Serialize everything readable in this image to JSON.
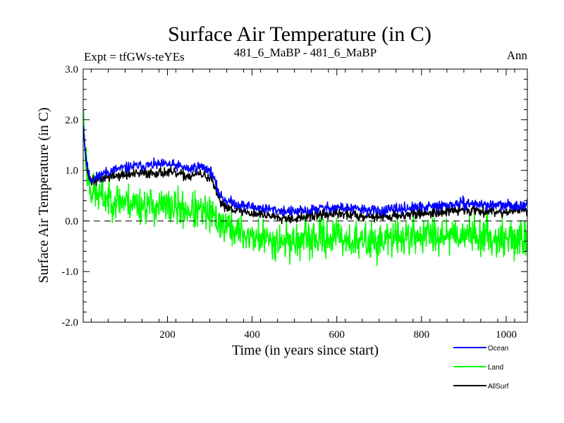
{
  "chart_data": {
    "type": "line",
    "title": "Surface Air Temperature (in C)",
    "subtitle_left": "Expt = tfGWs-teYEs",
    "subtitle_center": "481_6_MaBP - 481_6_MaBP",
    "subtitle_right": "Ann",
    "xlabel": "Time (in years since start)",
    "ylabel": "Surface Air Temperature (in C)",
    "xlim": [
      1,
      1050
    ],
    "ylim": [
      -2.0,
      3.0
    ],
    "x_ticks": [
      200,
      400,
      600,
      800,
      1000
    ],
    "x_tick_labels": [
      "200",
      "400",
      "600",
      "800",
      "1000"
    ],
    "y_ticks": [
      -2.0,
      -1.0,
      0.0,
      1.0,
      2.0,
      3.0
    ],
    "y_tick_labels": [
      "-2.0",
      "-1.0",
      "0.0",
      "1.0",
      "2.0",
      "3.0"
    ],
    "reference_line": 0.0,
    "legend_position": "bottom-right, below plot",
    "series": [
      {
        "name": "Ocean",
        "color": "#0000ff",
        "noise": 0.05,
        "seed": 11,
        "points": [
          [
            1,
            1.95
          ],
          [
            5,
            1.5
          ],
          [
            10,
            1.1
          ],
          [
            15,
            0.9
          ],
          [
            20,
            0.82
          ],
          [
            30,
            0.85
          ],
          [
            50,
            0.95
          ],
          [
            80,
            1.02
          ],
          [
            120,
            1.08
          ],
          [
            160,
            1.1
          ],
          [
            200,
            1.12
          ],
          [
            230,
            1.08
          ],
          [
            250,
            1.02
          ],
          [
            270,
            1.08
          ],
          [
            290,
            1.05
          ],
          [
            305,
            0.95
          ],
          [
            315,
            0.7
          ],
          [
            325,
            0.5
          ],
          [
            340,
            0.4
          ],
          [
            370,
            0.32
          ],
          [
            400,
            0.28
          ],
          [
            450,
            0.22
          ],
          [
            500,
            0.18
          ],
          [
            530,
            0.2
          ],
          [
            560,
            0.25
          ],
          [
            600,
            0.27
          ],
          [
            640,
            0.24
          ],
          [
            700,
            0.2
          ],
          [
            760,
            0.25
          ],
          [
            800,
            0.27
          ],
          [
            850,
            0.3
          ],
          [
            900,
            0.35
          ],
          [
            950,
            0.32
          ],
          [
            1000,
            0.3
          ],
          [
            1050,
            0.33
          ]
        ]
      },
      {
        "name": "Land",
        "color": "#00ff00",
        "noise": 0.18,
        "seed": 23,
        "points": [
          [
            1,
            2.15
          ],
          [
            5,
            1.5
          ],
          [
            10,
            1.0
          ],
          [
            20,
            0.6
          ],
          [
            40,
            0.48
          ],
          [
            80,
            0.42
          ],
          [
            120,
            0.35
          ],
          [
            160,
            0.3
          ],
          [
            200,
            0.27
          ],
          [
            250,
            0.22
          ],
          [
            300,
            0.12
          ],
          [
            330,
            -0.05
          ],
          [
            360,
            -0.2
          ],
          [
            400,
            -0.32
          ],
          [
            450,
            -0.38
          ],
          [
            500,
            -0.4
          ],
          [
            550,
            -0.35
          ],
          [
            600,
            -0.3
          ],
          [
            650,
            -0.42
          ],
          [
            700,
            -0.4
          ],
          [
            750,
            -0.32
          ],
          [
            800,
            -0.28
          ],
          [
            850,
            -0.25
          ],
          [
            900,
            -0.25
          ],
          [
            950,
            -0.3
          ],
          [
            1000,
            -0.35
          ],
          [
            1050,
            -0.38
          ]
        ]
      },
      {
        "name": "AllSurf",
        "color": "#000000",
        "noise": 0.05,
        "seed": 37,
        "points": [
          [
            1,
            1.85
          ],
          [
            5,
            1.45
          ],
          [
            10,
            1.05
          ],
          [
            15,
            0.85
          ],
          [
            20,
            0.78
          ],
          [
            30,
            0.8
          ],
          [
            50,
            0.85
          ],
          [
            80,
            0.9
          ],
          [
            120,
            0.92
          ],
          [
            160,
            0.95
          ],
          [
            200,
            0.96
          ],
          [
            230,
            0.92
          ],
          [
            250,
            0.88
          ],
          [
            270,
            0.93
          ],
          [
            290,
            0.9
          ],
          [
            305,
            0.8
          ],
          [
            315,
            0.55
          ],
          [
            325,
            0.38
          ],
          [
            340,
            0.28
          ],
          [
            370,
            0.2
          ],
          [
            400,
            0.15
          ],
          [
            450,
            0.1
          ],
          [
            500,
            0.05
          ],
          [
            530,
            0.08
          ],
          [
            560,
            0.12
          ],
          [
            600,
            0.14
          ],
          [
            640,
            0.12
          ],
          [
            700,
            0.08
          ],
          [
            760,
            0.12
          ],
          [
            800,
            0.15
          ],
          [
            850,
            0.18
          ],
          [
            900,
            0.22
          ],
          [
            950,
            0.2
          ],
          [
            1000,
            0.18
          ],
          [
            1050,
            0.22
          ]
        ]
      }
    ]
  }
}
